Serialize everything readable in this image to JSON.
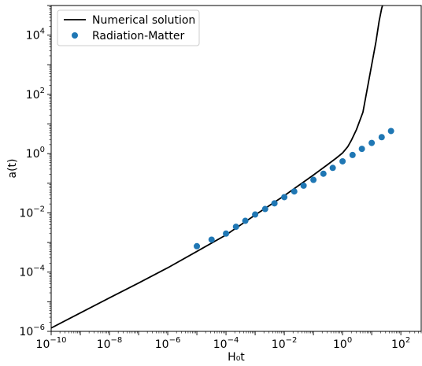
{
  "chart_data": {
    "type": "scatter",
    "xlabel": "H₀t",
    "ylabel": "a(t)",
    "x_scale": "log",
    "y_scale": "log",
    "xlim": [
      1e-10,
      500
    ],
    "ylim": [
      1e-06,
      100000
    ],
    "grid": false,
    "legend_position": "top-left",
    "x_tick_labels": [
      {
        "value": 1e-10,
        "base": "10",
        "exp": "−10"
      },
      {
        "value": 1e-08,
        "base": "10",
        "exp": "−8"
      },
      {
        "value": 1e-06,
        "base": "10",
        "exp": "−6"
      },
      {
        "value": 0.0001,
        "base": "10",
        "exp": "−4"
      },
      {
        "value": 0.01,
        "base": "10",
        "exp": "−2"
      },
      {
        "value": 1,
        "base": "10",
        "exp": "0"
      },
      {
        "value": 100,
        "base": "10",
        "exp": "2"
      }
    ],
    "y_tick_labels": [
      {
        "value": 1e-06,
        "base": "10",
        "exp": "−6"
      },
      {
        "value": 0.0001,
        "base": "10",
        "exp": "−4"
      },
      {
        "value": 0.01,
        "base": "10",
        "exp": "−2"
      },
      {
        "value": 1,
        "base": "10",
        "exp": "0"
      },
      {
        "value": 100,
        "base": "10",
        "exp": "2"
      },
      {
        "value": 10000,
        "base": "10",
        "exp": "4"
      }
    ],
    "series": [
      {
        "name": "Numerical solution",
        "kind": "line",
        "color": "#000000",
        "x": [
          1e-10,
          1e-09,
          1e-08,
          1e-07,
          1e-06,
          1e-05,
          0.0001,
          0.001,
          0.01,
          0.1,
          0.3,
          0.6,
          1.0,
          1.5,
          2.0,
          3.0,
          5.0,
          7.0,
          10.0,
          14.0,
          18.0,
          22.0,
          27.0
        ],
        "y": [
          1.3e-06,
          4.2e-06,
          1.35e-05,
          4.3e-05,
          0.00014,
          0.0005,
          0.0018,
          0.0085,
          0.038,
          0.19,
          0.42,
          0.7,
          1.05,
          1.7,
          2.8,
          6.5,
          25,
          150,
          1000,
          6000,
          30000,
          80000,
          160000
        ]
      },
      {
        "name": "Radiation-Matter",
        "kind": "scatter",
        "color": "#1f77b4",
        "x": [
          1e-05,
          3.2e-05,
          0.0001,
          0.00022,
          0.00046,
          0.001,
          0.0022,
          0.0046,
          0.01,
          0.022,
          0.046,
          0.1,
          0.22,
          0.46,
          1.0,
          2.2,
          4.6,
          10,
          22,
          46
        ],
        "y": [
          0.00075,
          0.00125,
          0.002,
          0.0034,
          0.0054,
          0.0088,
          0.0135,
          0.021,
          0.034,
          0.053,
          0.083,
          0.13,
          0.21,
          0.33,
          0.55,
          0.9,
          1.45,
          2.3,
          3.6,
          5.8
        ]
      }
    ]
  }
}
